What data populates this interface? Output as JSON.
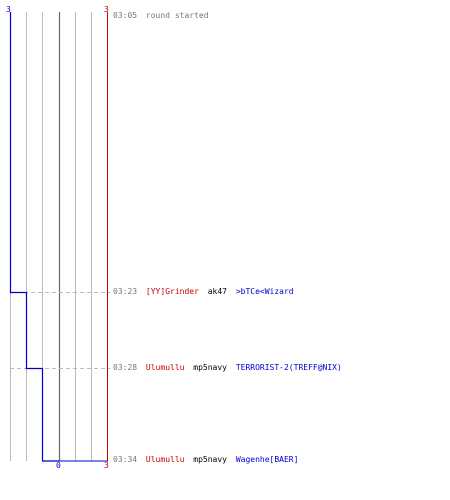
{
  "colors": {
    "team_a": "#0000cc",
    "team_b": "#cc0000",
    "grid": "#bbbbbb",
    "time": "#777777"
  },
  "scores": {
    "team_a_start": "3",
    "team_b_start": "3",
    "team_a_end": "0",
    "team_b_end": "3"
  },
  "events": [
    {
      "time": "03:05",
      "text": "round started"
    },
    {
      "time": "03:23",
      "killer": "[YY]Grinder",
      "weapon": "ak47",
      "victim": ">bTCe<Wizard"
    },
    {
      "time": "03:28",
      "killer": "Ulumullu",
      "weapon": "mp5navy",
      "victim": "TERRORIST-2(TREFF@NIX)"
    },
    {
      "time": "03:34",
      "killer": "Ulumullu",
      "weapon": "mp5navy",
      "victim": "Wagenhe[BAER]"
    }
  ]
}
